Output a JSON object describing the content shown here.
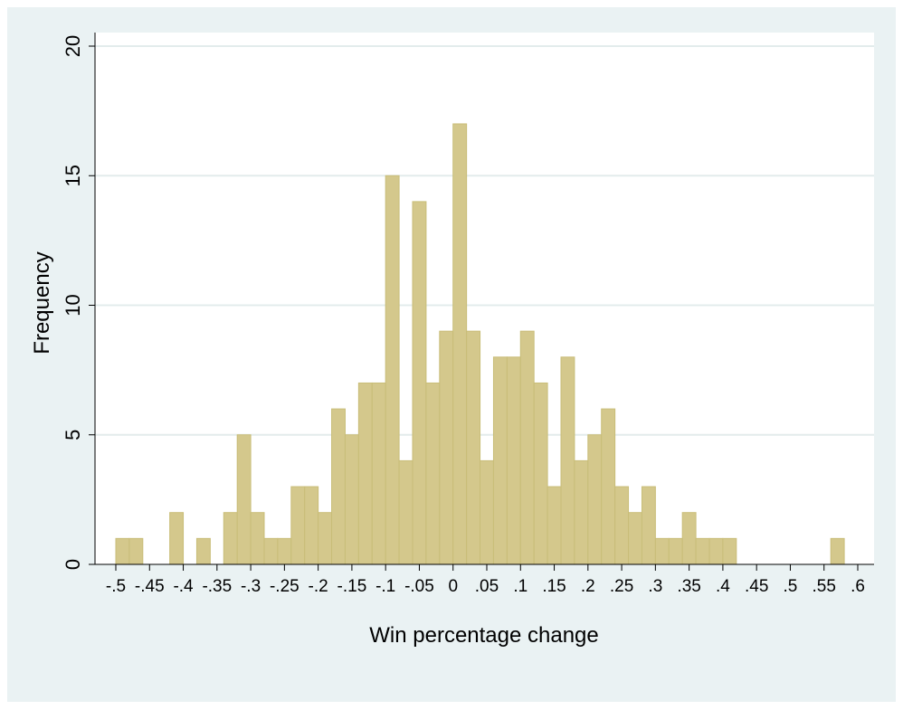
{
  "chart_data": {
    "type": "bar",
    "subtype": "histogram",
    "xlabel": "Win percentage change",
    "ylabel": "Frequency",
    "x_ticks": [
      "-.5",
      "-.45",
      "-.4",
      "-.35",
      "-.3",
      "-.25",
      "-.2",
      "-.15",
      "-.1",
      "-.05",
      "0",
      ".05",
      ".1",
      ".15",
      ".2",
      ".25",
      ".3",
      ".35",
      ".4",
      ".45",
      ".5",
      ".55",
      ".6"
    ],
    "x_tick_values": [
      -0.5,
      -0.45,
      -0.4,
      -0.35,
      -0.3,
      -0.25,
      -0.2,
      -0.15,
      -0.1,
      -0.05,
      0,
      0.05,
      0.1,
      0.15,
      0.2,
      0.25,
      0.3,
      0.35,
      0.4,
      0.45,
      0.5,
      0.55,
      0.6
    ],
    "y_ticks": [
      0,
      5,
      10,
      15,
      20
    ],
    "xlim": [
      -0.52,
      0.62
    ],
    "ylim": [
      0,
      20
    ],
    "bin_width": 0.02,
    "bins": [
      {
        "x0": -0.5,
        "count": 1
      },
      {
        "x0": -0.48,
        "count": 1
      },
      {
        "x0": -0.42,
        "count": 2
      },
      {
        "x0": -0.38,
        "count": 1
      },
      {
        "x0": -0.34,
        "count": 2
      },
      {
        "x0": -0.32,
        "count": 5
      },
      {
        "x0": -0.3,
        "count": 2
      },
      {
        "x0": -0.28,
        "count": 1
      },
      {
        "x0": -0.26,
        "count": 1
      },
      {
        "x0": -0.24,
        "count": 3
      },
      {
        "x0": -0.22,
        "count": 3
      },
      {
        "x0": -0.2,
        "count": 2
      },
      {
        "x0": -0.18,
        "count": 6
      },
      {
        "x0": -0.16,
        "count": 5
      },
      {
        "x0": -0.14,
        "count": 7
      },
      {
        "x0": -0.12,
        "count": 7
      },
      {
        "x0": -0.1,
        "count": 15
      },
      {
        "x0": -0.08,
        "count": 4
      },
      {
        "x0": -0.06,
        "count": 14
      },
      {
        "x0": -0.04,
        "count": 7
      },
      {
        "x0": -0.02,
        "count": 9
      },
      {
        "x0": 0.0,
        "count": 17
      },
      {
        "x0": 0.02,
        "count": 9
      },
      {
        "x0": 0.04,
        "count": 4
      },
      {
        "x0": 0.06,
        "count": 8
      },
      {
        "x0": 0.08,
        "count": 8
      },
      {
        "x0": 0.1,
        "count": 9
      },
      {
        "x0": 0.12,
        "count": 7
      },
      {
        "x0": 0.14,
        "count": 3
      },
      {
        "x0": 0.16,
        "count": 8
      },
      {
        "x0": 0.18,
        "count": 4
      },
      {
        "x0": 0.2,
        "count": 5
      },
      {
        "x0": 0.22,
        "count": 6
      },
      {
        "x0": 0.24,
        "count": 3
      },
      {
        "x0": 0.26,
        "count": 2
      },
      {
        "x0": 0.28,
        "count": 3
      },
      {
        "x0": 0.3,
        "count": 1
      },
      {
        "x0": 0.32,
        "count": 1
      },
      {
        "x0": 0.34,
        "count": 2
      },
      {
        "x0": 0.36,
        "count": 1
      },
      {
        "x0": 0.38,
        "count": 1
      },
      {
        "x0": 0.4,
        "count": 1
      },
      {
        "x0": 0.56,
        "count": 1
      }
    ],
    "grid": true,
    "colors": {
      "bar_fill": "#d4c88c",
      "bar_stroke": "#c9bd78",
      "background": "#eaf2f3",
      "plot_background": "#ffffff",
      "gridline": "#e3ecec"
    }
  }
}
